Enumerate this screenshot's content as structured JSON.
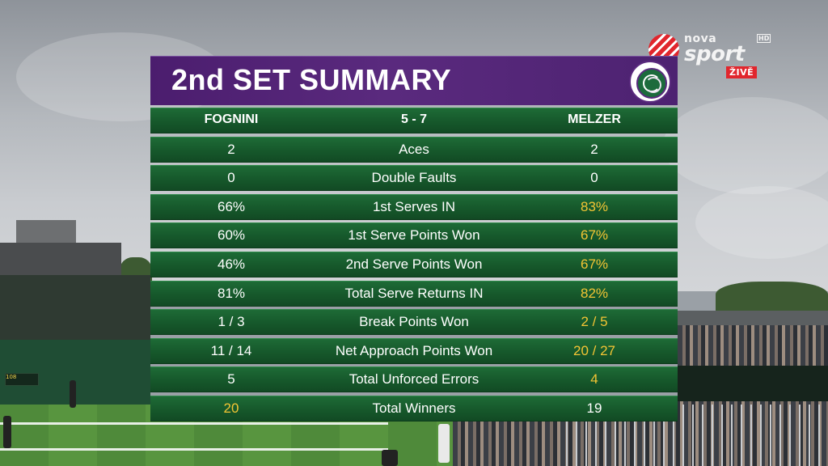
{
  "broadcaster": {
    "name_top": "nova",
    "name_bottom": "sport",
    "hd": "HD",
    "live_badge": "ŽIVĚ"
  },
  "summary": {
    "title": "2nd SET SUMMARY",
    "header_row": {
      "player1": "FOGNINI",
      "score": "5 - 7",
      "player2": "MELZER"
    },
    "stats": [
      {
        "p1": "2",
        "label": "Aces",
        "p2": "2",
        "p1_hl": false,
        "p2_hl": false
      },
      {
        "p1": "0",
        "label": "Double Faults",
        "p2": "0",
        "p1_hl": false,
        "p2_hl": false
      },
      {
        "p1": "66%",
        "label": "1st Serves IN",
        "p2": "83%",
        "p1_hl": false,
        "p2_hl": true
      },
      {
        "p1": "60%",
        "label": "1st Serve Points Won",
        "p2": "67%",
        "p1_hl": false,
        "p2_hl": true
      },
      {
        "p1": "46%",
        "label": "2nd Serve Points Won",
        "p2": "67%",
        "p1_hl": false,
        "p2_hl": true
      },
      {
        "p1": "81%",
        "label": "Total Serve Returns IN",
        "p2": "82%",
        "p1_hl": false,
        "p2_hl": true
      },
      {
        "p1": "1 / 3",
        "label": "Break Points Won",
        "p2": "2 / 5",
        "p1_hl": false,
        "p2_hl": true
      },
      {
        "p1": "11 / 14",
        "label": "Net Approach Points Won",
        "p2": "20 / 27",
        "p1_hl": false,
        "p2_hl": true
      },
      {
        "p1": "5",
        "label": "Total Unforced Errors",
        "p2": "4",
        "p1_hl": false,
        "p2_hl": true
      },
      {
        "p1": "20",
        "label": "Total Winners",
        "p2": "19",
        "p1_hl": true,
        "p2_hl": false
      }
    ]
  },
  "court_scoreboard": {
    "speed": "108"
  },
  "colors": {
    "header_purple": "#4b1d6e",
    "row_green": "#1e6b36",
    "highlight_yellow": "#f4c534",
    "live_red": "#e1262d"
  }
}
